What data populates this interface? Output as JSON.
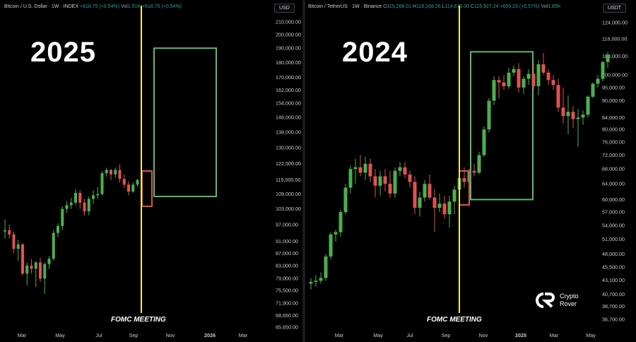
{
  "left": {
    "header": {
      "symbol": "Bitcoin / U.S. Dollar · 1W · INDEX",
      "change": "+618.75 (+0.54%)",
      "vol_label": "Vol",
      "vol_value": "1.51K",
      "change2": "+618.75 (+0.54%)"
    },
    "currency": "USD",
    "year_label": "2025",
    "fomc_label": "FOMC MEETING",
    "x_ticks": [
      "Mar",
      "May",
      "Jul",
      "Sep",
      "Nov",
      "2026",
      "Mar"
    ]
  },
  "right": {
    "header": {
      "symbol": "Bitcoin / TetherUS · 1W · Binance",
      "o_label": "O",
      "o": "115,268.01",
      "h_label": "H",
      "h": "116,168.26",
      "l_label": "L",
      "l": "114,675.00",
      "c_label": "C",
      "c": "115,927.24",
      "change": "+659.23 (+0.57%)",
      "vol_label": "Vol",
      "vol_value": "1.85K"
    },
    "currency": "USDT",
    "year_label": "2024",
    "fomc_label": "FOMC MEETING",
    "x_ticks": [
      "Mar",
      "May",
      "Jul",
      "Sep",
      "Nov",
      "2025",
      "Mar",
      "May"
    ]
  },
  "brand": {
    "line1": "Crypto",
    "line2": "Rover"
  },
  "colors": {
    "up": "#4caf50",
    "down": "#e05252",
    "fomc_line": "#f5e663",
    "projection_box": "#5fb96b",
    "fomc_candle_box": "#d9534f"
  },
  "chart_data": [
    {
      "type": "candlestick",
      "title": "2025",
      "y_scale": "log",
      "ylim": [
        65650,
        210000
      ],
      "y_ticks": [
        "210,000.00",
        "200,000.00",
        "190,000.00",
        "180,000.00",
        "170,000.00",
        "162,000.00",
        "154,000.00",
        "146,000.00",
        "138,000.00",
        "130,000.00",
        "122,500.00",
        "115,000.00",
        "109,000.00",
        "103,000.00",
        "97,000.00",
        "91,000.00",
        "87,000.00",
        "83,000.00",
        "79,000.00",
        "75,500.00",
        "71,900.00",
        "68,650.00",
        "65,650.00"
      ],
      "y_tick_values": [
        210000,
        200000,
        190000,
        180000,
        170000,
        162000,
        154000,
        146000,
        138000,
        130000,
        122500,
        115000,
        109000,
        103000,
        97000,
        91000,
        87000,
        83000,
        79000,
        75500,
        71900,
        68650,
        65650
      ],
      "x_ticks": [
        "Mar",
        "May",
        "Jul",
        "Sep",
        "Nov",
        "2026",
        "Mar"
      ],
      "annotations": [
        "FOMC MEETING"
      ],
      "projection_range": [
        108000,
        190000
      ],
      "candles": [
        [
          94500,
          99000,
          92000,
          95000
        ],
        [
          95000,
          97000,
          92000,
          93500
        ],
        [
          93500,
          94500,
          87000,
          88500
        ],
        [
          88500,
          91500,
          84500,
          90000
        ],
        [
          90000,
          90500,
          80000,
          80500
        ],
        [
          80500,
          84000,
          77000,
          83000
        ],
        [
          83000,
          85000,
          80500,
          82000
        ],
        [
          82000,
          84500,
          76500,
          84000
        ],
        [
          84000,
          85500,
          78000,
          79000
        ],
        [
          79000,
          84000,
          74500,
          83500
        ],
        [
          83500,
          86000,
          82000,
          85200
        ],
        [
          85200,
          95000,
          84500,
          94000
        ],
        [
          94000,
          97500,
          92500,
          96500
        ],
        [
          96500,
          104000,
          95000,
          103000
        ],
        [
          103000,
          106000,
          101500,
          104500
        ],
        [
          104500,
          107500,
          103000,
          105500
        ],
        [
          105500,
          111000,
          104500,
          109500
        ],
        [
          109500,
          110500,
          103000,
          105500
        ],
        [
          105500,
          107000,
          100500,
          102000
        ],
        [
          102000,
          108000,
          100500,
          107000
        ],
        [
          107000,
          110500,
          105000,
          108500
        ],
        [
          108500,
          112000,
          107000,
          109000
        ],
        [
          109000,
          119000,
          108500,
          118000
        ],
        [
          118000,
          120500,
          116500,
          119500
        ],
        [
          119500,
          120000,
          115000,
          117500
        ],
        [
          117500,
          120500,
          116000,
          119500
        ],
        [
          119500,
          122000,
          114000,
          115500
        ],
        [
          115500,
          117500,
          111500,
          113000
        ],
        [
          113000,
          114500,
          108500,
          110000
        ],
        [
          110000,
          114000,
          109500,
          113000
        ],
        [
          113000,
          115500,
          112000,
          115000
        ]
      ]
    },
    {
      "type": "candlestick",
      "title": "2024",
      "y_scale": "log",
      "ylim": [
        36700,
        124000
      ],
      "y_ticks": [
        "124,000.00",
        "116,000.00",
        "108,000.00",
        "100,000.00",
        "95,000.00",
        "90,000.00",
        "84,000.00",
        "80,000.00",
        "76,000.00",
        "72,000.00",
        "68,000.00",
        "64,000.00",
        "60,000.00",
        "57,000.00",
        "54,000.00",
        "51,000.00",
        "48,000.00",
        "45,500.00",
        "43,100.00",
        "40,700.00",
        "38,700.00",
        "36,700.00"
      ],
      "y_tick_values": [
        124000,
        116000,
        108000,
        100000,
        95000,
        90000,
        84000,
        80000,
        76000,
        72000,
        68000,
        64000,
        60000,
        57000,
        54000,
        51000,
        48000,
        45500,
        43100,
        40700,
        38700,
        36700
      ],
      "x_ticks": [
        "Mar",
        "May",
        "Jul",
        "Sep",
        "Nov",
        "2025",
        "Mar",
        "May"
      ],
      "annotations": [
        "FOMC MEETING"
      ],
      "projection_range": [
        60000,
        110000
      ],
      "candles": [
        [
          42500,
          43500,
          41500,
          42800
        ],
        [
          42800,
          44000,
          42000,
          43000
        ],
        [
          43000,
          44500,
          42500,
          43500
        ],
        [
          43500,
          48000,
          43000,
          47500
        ],
        [
          47500,
          52500,
          47000,
          52000
        ],
        [
          52000,
          53000,
          50500,
          52500
        ],
        [
          52500,
          57500,
          51500,
          57000
        ],
        [
          57000,
          64000,
          56500,
          63000
        ],
        [
          63000,
          69000,
          61500,
          68000
        ],
        [
          68000,
          71000,
          64000,
          68500
        ],
        [
          68500,
          72000,
          66000,
          67000
        ],
        [
          67000,
          71500,
          65000,
          69500
        ],
        [
          69500,
          71000,
          64500,
          66000
        ],
        [
          66000,
          68000,
          60500,
          63500
        ],
        [
          63500,
          67500,
          61000,
          66000
        ],
        [
          66000,
          68000,
          62000,
          64000
        ],
        [
          64000,
          67500,
          60500,
          61500
        ],
        [
          61500,
          68500,
          60500,
          67500
        ],
        [
          67500,
          70000,
          66000,
          68500
        ],
        [
          68500,
          70000,
          65500,
          66500
        ],
        [
          66500,
          67500,
          63000,
          64500
        ],
        [
          64500,
          66000,
          56500,
          58000
        ],
        [
          58000,
          62000,
          56000,
          60500
        ],
        [
          60500,
          65000,
          59500,
          64000
        ],
        [
          64000,
          66500,
          60000,
          60500
        ],
        [
          60500,
          62500,
          52500,
          58000
        ],
        [
          58000,
          61500,
          57000,
          59000
        ],
        [
          59000,
          61000,
          55500,
          56500
        ],
        [
          56500,
          61000,
          53500,
          59500
        ],
        [
          59500,
          63500,
          56500,
          62500
        ],
        [
          62500,
          66500,
          61500,
          65500
        ],
        [
          65500,
          68500,
          63000,
          64500
        ],
        [
          64500,
          68000,
          63000,
          67500
        ],
        [
          67500,
          69500,
          66000,
          67000
        ],
        [
          67000,
          73000,
          66500,
          72000
        ],
        [
          72000,
          81000,
          71500,
          80000
        ],
        [
          80000,
          91000,
          79000,
          90000
        ],
        [
          90000,
          99500,
          88500,
          98000
        ],
        [
          98000,
          99500,
          91000,
          97000
        ],
        [
          97000,
          100000,
          94000,
          95500
        ],
        [
          95500,
          103000,
          94500,
          101000
        ],
        [
          101000,
          104000,
          99500,
          102500
        ],
        [
          102500,
          105000,
          93000,
          95000
        ],
        [
          95000,
          99500,
          92500,
          98500
        ],
        [
          98500,
          102500,
          96000,
          100500
        ],
        [
          100500,
          105000,
          94000,
          95500
        ],
        [
          95500,
          106500,
          92000,
          104500
        ],
        [
          104500,
          109500,
          100000,
          101000
        ],
        [
          101000,
          102500,
          96000,
          98000
        ],
        [
          98000,
          100000,
          94000,
          96000
        ],
        [
          96000,
          98500,
          86000,
          87500
        ],
        [
          87500,
          95000,
          82000,
          84500
        ],
        [
          84500,
          92000,
          78500,
          86000
        ],
        [
          86000,
          88000,
          80500,
          83500
        ],
        [
          83500,
          87000,
          74500,
          84000
        ],
        [
          84000,
          86500,
          81500,
          85000
        ],
        [
          85000,
          92000,
          84000,
          91500
        ],
        [
          91500,
          97000,
          91000,
          96500
        ],
        [
          96500,
          100000,
          95000,
          98500
        ],
        [
          98500,
          106000,
          97500,
          105500
        ],
        [
          105500,
          110000,
          103000,
          108500
        ]
      ]
    }
  ]
}
